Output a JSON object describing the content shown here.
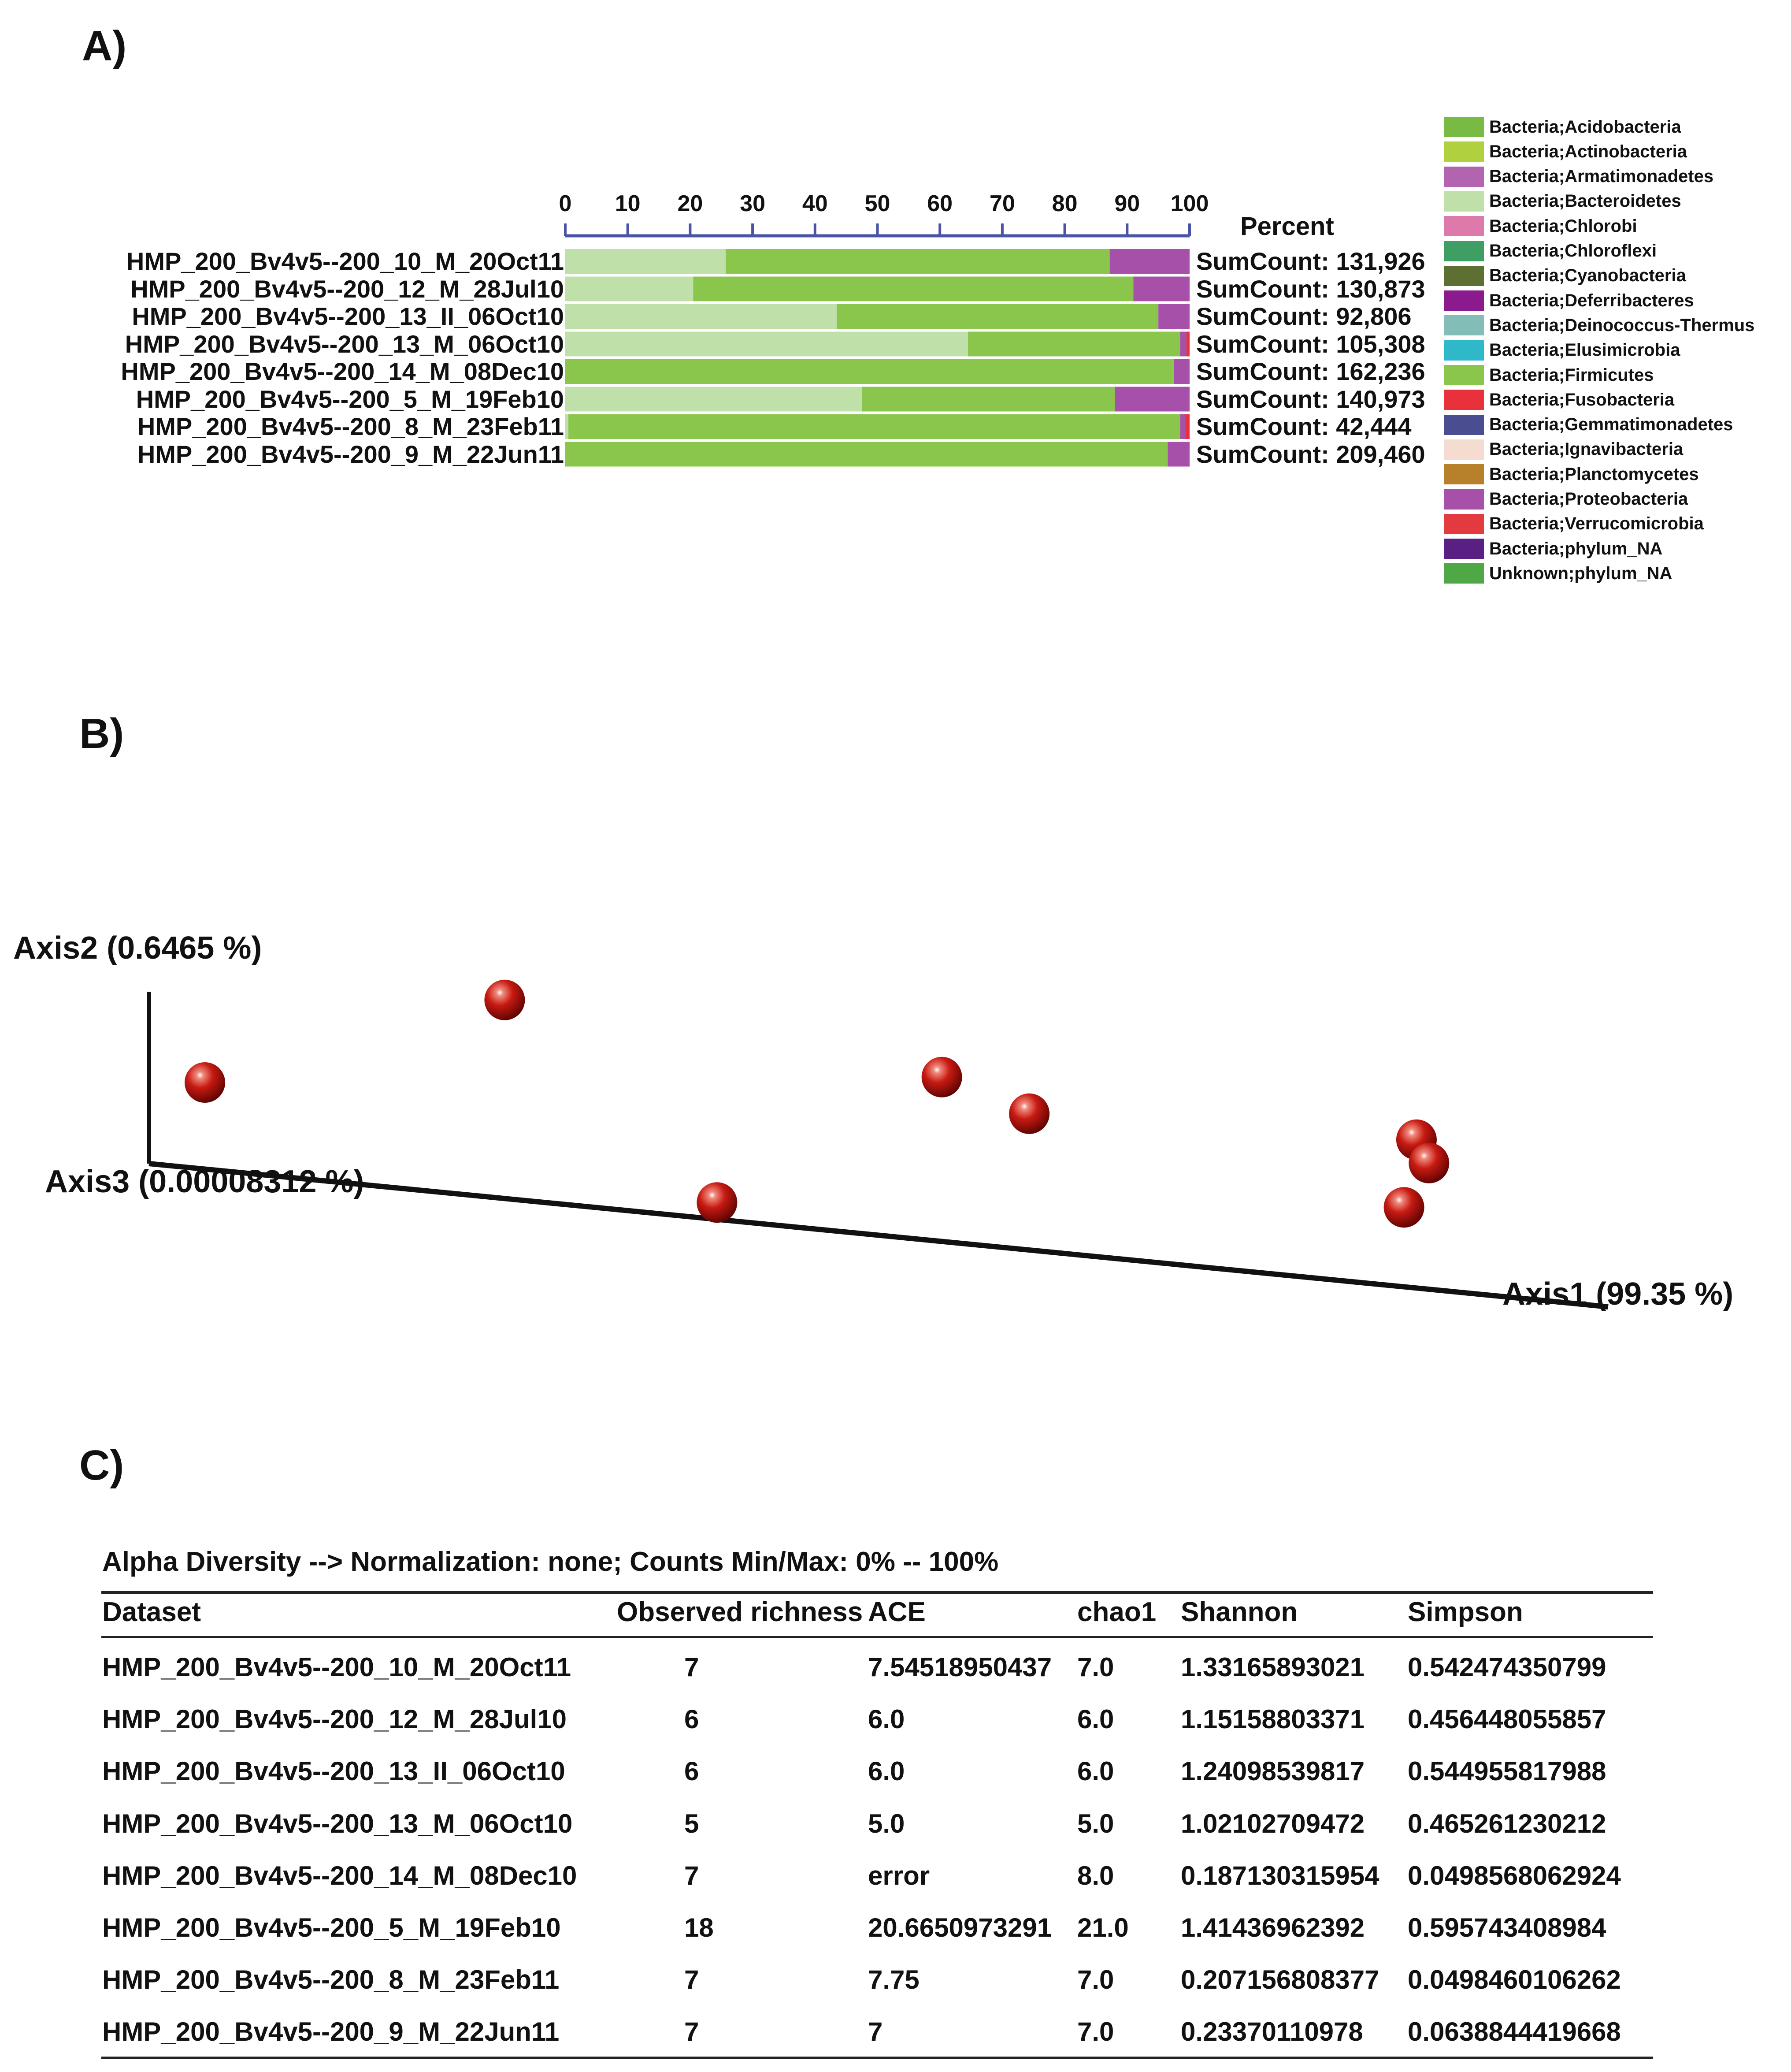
{
  "panels": {
    "a": "A)",
    "b": "B)",
    "c": "C)"
  },
  "colors": {
    "bacteroidetes": "#bfe0a8",
    "firmicutes": "#8ac64b",
    "proteobacteria": "#a650a9",
    "verrucomicrobia": "#e8313b",
    "axis_blue": "#4a53a6",
    "point": "#c0130e"
  },
  "chart_data": [
    {
      "type": "bar",
      "orientation": "horizontal",
      "stacked": true,
      "title": "",
      "xlabel": "Percent",
      "xlim": [
        0,
        100
      ],
      "x_ticks": [
        "0",
        "10",
        "20",
        "30",
        "40",
        "50",
        "60",
        "70",
        "80",
        "90",
        "100"
      ],
      "categories": [
        "HMP_200_Bv4v5--200_10_M_20Oct11",
        "HMP_200_Bv4v5--200_12_M_28Jul10",
        "HMP_200_Bv4v5--200_13_II_06Oct10",
        "HMP_200_Bv4v5--200_13_M_06Oct10",
        "HMP_200_Bv4v5--200_14_M_08Dec10",
        "HMP_200_Bv4v5--200_5_M_19Feb10",
        "HMP_200_Bv4v5--200_8_M_23Feb11",
        "HMP_200_Bv4v5--200_9_M_22Jun11"
      ],
      "series": [
        {
          "name": "Bacteria;Bacteroidetes",
          "color": "#bfe0a8",
          "values": [
            25.7,
            20.5,
            43.5,
            64.5,
            0,
            47.5,
            0.5,
            0
          ]
        },
        {
          "name": "Bacteria;Firmicutes",
          "color": "#8ac64b",
          "values": [
            61.5,
            70.5,
            51.5,
            34.0,
            97.5,
            40.5,
            98.0,
            96.5
          ]
        },
        {
          "name": "Bacteria;Proteobacteria",
          "color": "#a650a9",
          "values": [
            12.8,
            9.0,
            5.0,
            1.0,
            2.5,
            12.0,
            0.8,
            3.5
          ]
        },
        {
          "name": "Bacteria;Verrucomicrobia",
          "color": "#e8313b",
          "values": [
            0,
            0,
            0,
            0.5,
            0,
            0,
            0.7,
            0
          ]
        }
      ],
      "sum_counts": [
        "SumCount: 131,926",
        "SumCount: 130,873",
        "SumCount: 92,806",
        "SumCount: 105,308",
        "SumCount: 162,236",
        "SumCount: 140,973",
        "SumCount: 42,444",
        "SumCount: 209,460"
      ],
      "legend": [
        {
          "label": "Bacteria;Acidobacteria",
          "color": "#77bb45"
        },
        {
          "label": "Bacteria;Actinobacteria",
          "color": "#aed13d"
        },
        {
          "label": "Bacteria;Armatimonadetes",
          "color": "#b364b0"
        },
        {
          "label": "Bacteria;Bacteroidetes",
          "color": "#bfe0a8"
        },
        {
          "label": "Bacteria;Chlorobi",
          "color": "#dd7aa9"
        },
        {
          "label": "Bacteria;Chloroflexi",
          "color": "#3e9e63"
        },
        {
          "label": "Bacteria;Cyanobacteria",
          "color": "#5e7031"
        },
        {
          "label": "Bacteria;Deferribacteres",
          "color": "#8b1a8e"
        },
        {
          "label": "Bacteria;Deinococcus-Thermus",
          "color": "#83bdb8"
        },
        {
          "label": "Bacteria;Elusimicrobia",
          "color": "#2fb8c8"
        },
        {
          "label": "Bacteria;Firmicutes",
          "color": "#8ac64b"
        },
        {
          "label": "Bacteria;Fusobacteria",
          "color": "#e8313b"
        },
        {
          "label": "Bacteria;Gemmatimonadetes",
          "color": "#4a4d8f"
        },
        {
          "label": "Bacteria;Ignavibacteria",
          "color": "#f4ddd0"
        },
        {
          "label": "Bacteria;Planctomycetes",
          "color": "#b7812b"
        },
        {
          "label": "Bacteria;Proteobacteria",
          "color": "#a650a9"
        },
        {
          "label": "Bacteria;Verrucomicrobia",
          "color": "#e23a3f"
        },
        {
          "label": "Bacteria;phylum_NA",
          "color": "#5a1f82"
        },
        {
          "label": "Unknown;phylum_NA",
          "color": "#4fa845"
        }
      ]
    },
    {
      "type": "scatter",
      "projection": "3d-pcoa",
      "axes": {
        "axis1": "Axis1 (99.35 %)",
        "axis2": "Axis2 (0.6465 %)",
        "axis3": "Axis3 (0.00008312 %)"
      },
      "points": [
        {
          "axis1": 0.0,
          "axis2": 0.55
        },
        {
          "axis1": 0.24,
          "axis2": 0.95
        },
        {
          "axis1": 0.41,
          "axis2": 0.0
        },
        {
          "axis1": 0.59,
          "axis2": 0.6
        },
        {
          "axis1": 0.66,
          "axis2": 0.43
        },
        {
          "axis1": 0.97,
          "axis2": 0.32
        },
        {
          "axis1": 0.98,
          "axis2": 0.21
        },
        {
          "axis1": 0.96,
          "axis2": 0.0
        }
      ]
    },
    {
      "type": "table",
      "caption": "Alpha Diversity --> Normalization: none; Counts Min/Max: 0% -- 100%",
      "columns": [
        "Dataset",
        "Observed richness",
        "ACE",
        "chao1",
        "Shannon",
        "Simpson"
      ],
      "rows": [
        [
          "HMP_200_Bv4v5--200_10_M_20Oct11",
          "7",
          "7.54518950437",
          "7.0",
          "1.33165893021",
          "0.542474350799"
        ],
        [
          "HMP_200_Bv4v5--200_12_M_28Jul10",
          "6",
          "6.0",
          "6.0",
          "1.15158803371",
          "0.456448055857"
        ],
        [
          "HMP_200_Bv4v5--200_13_II_06Oct10",
          "6",
          "6.0",
          "6.0",
          "1.24098539817",
          "0.544955817988"
        ],
        [
          "HMP_200_Bv4v5--200_13_M_06Oct10",
          "5",
          "5.0",
          "5.0",
          "1.02102709472",
          "0.465261230212"
        ],
        [
          "HMP_200_Bv4v5--200_14_M_08Dec10",
          "7",
          "error",
          "8.0",
          "0.187130315954",
          "0.0498568062924"
        ],
        [
          "HMP_200_Bv4v5--200_5_M_19Feb10",
          "18",
          "20.6650973291",
          "21.0",
          "1.41436962392",
          "0.595743408984"
        ],
        [
          "HMP_200_Bv4v5--200_8_M_23Feb11",
          "7",
          "7.75",
          "7.0",
          "0.207156808377",
          "0.0498460106262"
        ],
        [
          "HMP_200_Bv4v5--200_9_M_22Jun11",
          "7",
          "7",
          "7.0",
          "0.23370110978",
          "0.0638844419668"
        ]
      ]
    }
  ]
}
